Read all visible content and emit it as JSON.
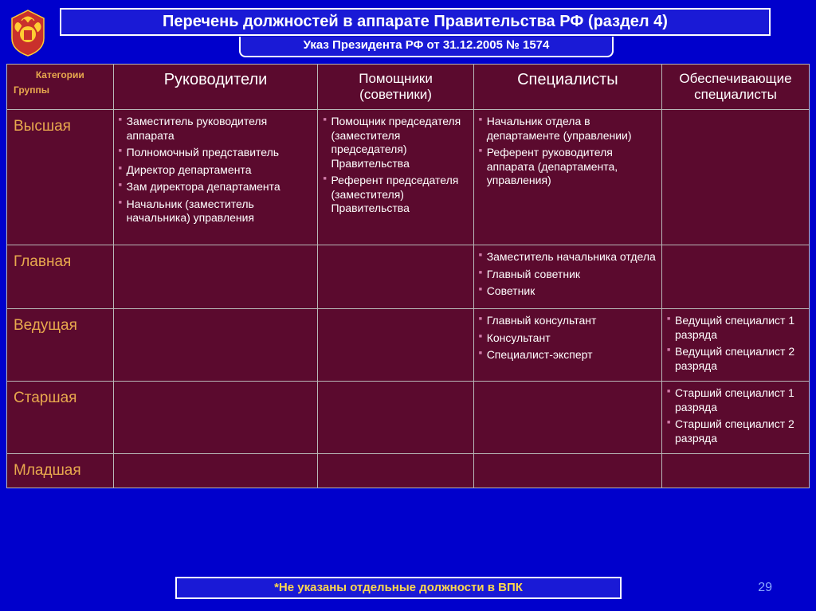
{
  "colors": {
    "page_bg": "#0000cc",
    "table_bg": "#5b0a2e",
    "row_label": "#e8a94e",
    "bullet": "#d07ba8",
    "footnote_text": "#ffd84d",
    "border": "#b8b8b8"
  },
  "title": "Перечень должностей в аппарате Правительства РФ (раздел 4)",
  "subtitle": "Указ Президента РФ от 31.12.2005 № 1574",
  "footnote": "*Не указаны отдельные должности в ВПК",
  "page_number": "29",
  "corner": {
    "top": "Категории",
    "bottom": "Группы"
  },
  "columns": [
    {
      "key": "leaders",
      "label": "Руководители"
    },
    {
      "key": "helpers",
      "label": "Помощники (советники)"
    },
    {
      "key": "specialists",
      "label": "Специалисты"
    },
    {
      "key": "support",
      "label": "Обеспечивающие специалисты"
    }
  ],
  "rows": [
    {
      "label": "Высшая",
      "leaders": [
        "Заместитель руководителя аппарата",
        "Полномочный представитель",
        "Директор департамента",
        "Зам директора департамента",
        "Начальник (заместитель начальника) управления"
      ],
      "helpers": [
        "Помощник председателя (заместителя председателя) Правительства",
        "Референт председателя (заместителя) Правительства"
      ],
      "specialists": [
        "Начальник отдела в департаменте (управлении)",
        "Референт руководителя аппарата (департамента, управления)"
      ],
      "support": []
    },
    {
      "label": "Главная",
      "leaders": [],
      "helpers": [],
      "specialists": [
        "Заместитель начальника отдела",
        "Главный советник",
        "Советник"
      ],
      "support": []
    },
    {
      "label": "Ведущая",
      "leaders": [],
      "helpers": [],
      "specialists": [
        "Главный консультант",
        "Консультант",
        "Специалист-эксперт"
      ],
      "support": [
        "Ведущий специалист 1 разряда",
        "Ведущий специалист 2 разряда"
      ]
    },
    {
      "label": "Старшая",
      "leaders": [],
      "helpers": [],
      "specialists": [],
      "support": [
        "Старший специалист 1 разряда",
        "Старший специалист 2 разряда"
      ]
    },
    {
      "label": "Младшая",
      "leaders": [],
      "helpers": [],
      "specialists": [],
      "support": []
    }
  ]
}
